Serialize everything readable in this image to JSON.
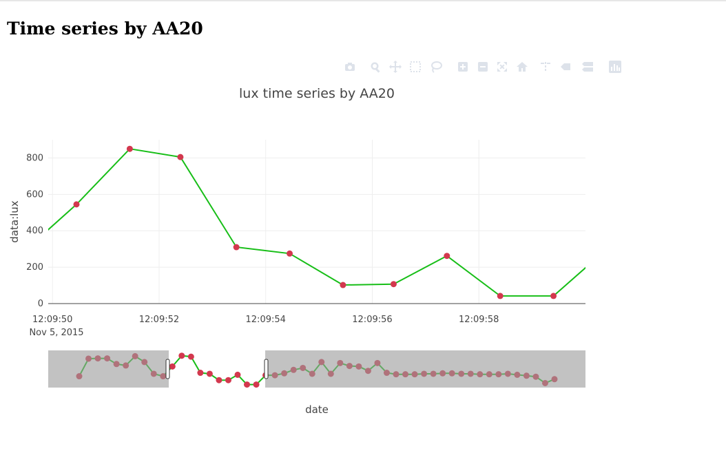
{
  "page": {
    "title": "Time series by AA20"
  },
  "toolbar": {
    "buttons": [
      {
        "name": "camera-icon",
        "label": "Download plot as a png"
      },
      {
        "name": "zoom-icon",
        "label": "Zoom"
      },
      {
        "name": "pan-icon",
        "label": "Pan"
      },
      {
        "name": "box-select-icon",
        "label": "Box Select"
      },
      {
        "name": "lasso-select-icon",
        "label": "Lasso Select"
      },
      {
        "name": "zoom-in-icon",
        "label": "Zoom in"
      },
      {
        "name": "zoom-out-icon",
        "label": "Zoom out"
      },
      {
        "name": "autoscale-icon",
        "label": "Autoscale"
      },
      {
        "name": "reset-axes-icon",
        "label": "Reset axes"
      },
      {
        "name": "spike-lines-icon",
        "label": "Toggle Spike Lines"
      },
      {
        "name": "hover-closest-icon",
        "label": "Show closest data on hover"
      },
      {
        "name": "hover-compare-icon",
        "label": "Compare data on hover"
      },
      {
        "name": "plotly-logo-icon",
        "label": "Produced with Plotly"
      }
    ],
    "icon_color": "#dde2ea"
  },
  "chart_data": {
    "type": "line",
    "title": "lux time series by AA20",
    "xlabel": "date",
    "ylabel": "data:lux",
    "date_label": "Nov 5, 2015",
    "x_range": [
      "12:09:49.92",
      "12:10:00.00"
    ],
    "ylim": [
      0,
      900
    ],
    "y_ticks": [
      0,
      200,
      400,
      600,
      800
    ],
    "x_ticks": [
      "12:09:50",
      "12:09:52",
      "12:09:54",
      "12:09:56",
      "12:09:58"
    ],
    "grid": true,
    "colors": {
      "line": "#17be17",
      "marker": "#d3384e",
      "dim_marker": "#7e2230",
      "dim_line": "#0e720e",
      "mask": "#999999"
    },
    "series": [
      {
        "x": [
          "12:09:49.40",
          "12:09:50.45",
          "12:09:51.45",
          "12:09:52.40",
          "12:09:53.45",
          "12:09:54.45",
          "12:09:55.45",
          "12:09:56.40",
          "12:09:57.40",
          "12:09:58.40",
          "12:09:59.40",
          "12:10:00.40"
        ],
        "y": [
          270,
          545,
          850,
          805,
          310,
          275,
          102,
          107,
          262,
          42,
          42,
          300
        ]
      }
    ],
    "rangeslider": {
      "window": [
        "12:09:49.92",
        "12:10:00.00"
      ],
      "y": [
        470,
        830,
        835,
        835,
        720,
        690,
        880,
        760,
        520,
        470,
        670,
        890,
        870,
        540,
        520,
        390,
        390,
        500,
        300,
        300,
        490,
        490,
        530,
        600,
        640,
        520,
        760,
        520,
        740,
        680,
        670,
        580,
        740,
        540,
        510,
        510,
        510,
        520,
        520,
        530,
        530,
        520,
        520,
        510,
        510,
        510,
        520,
        500,
        480,
        460,
        330,
        410
      ]
    }
  }
}
